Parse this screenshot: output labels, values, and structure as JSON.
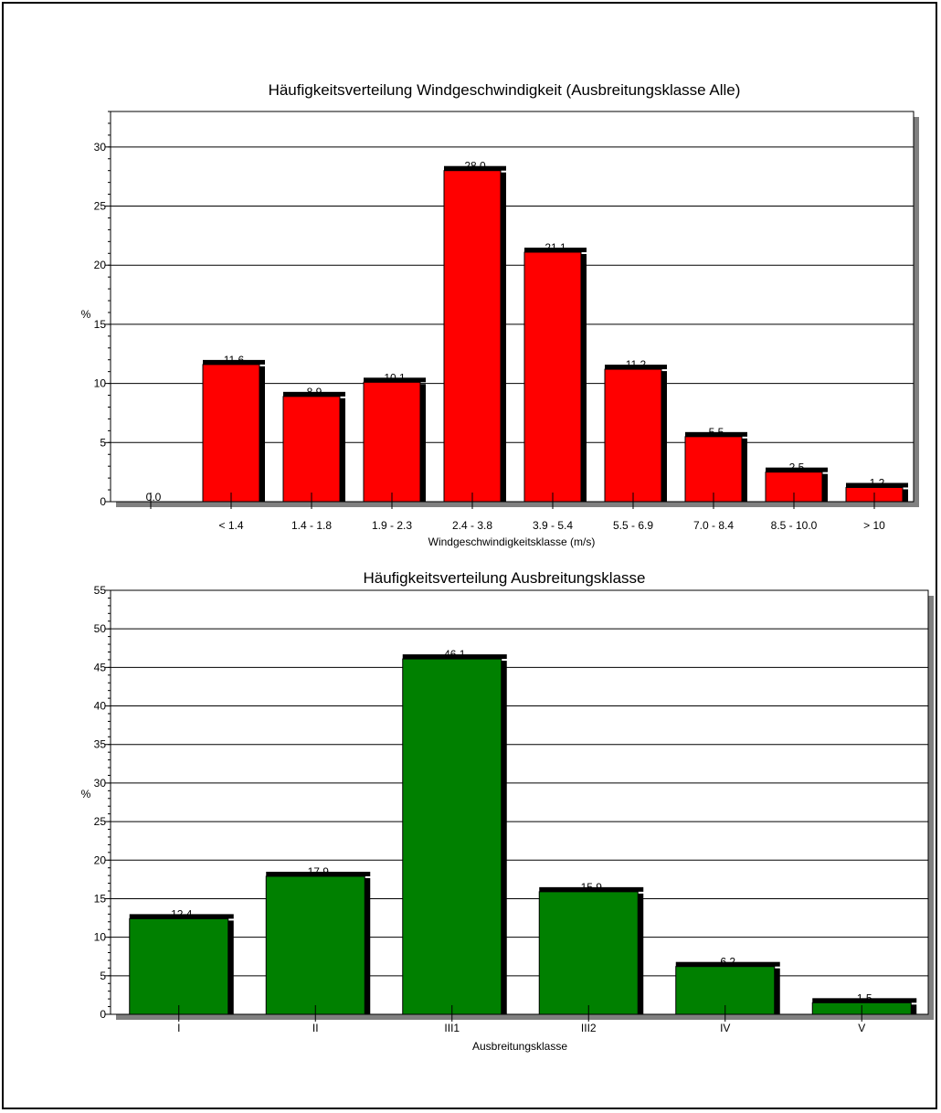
{
  "colors": {
    "wind_bar": "#ff0000",
    "class_bar": "#008000",
    "shadow": "#808080",
    "bar_top": "#000000",
    "grid": "#000000"
  },
  "chart_data": [
    {
      "type": "bar",
      "title": "Häufigkeitsverteilung Windgeschwindigkeit (Ausbreitungsklasse Alle)",
      "xlabel": "Windgeschwindigkeitsklasse (m/s)",
      "ylabel": "%",
      "ylim": [
        0,
        33
      ],
      "yticks": [
        0,
        5,
        10,
        15,
        20,
        25,
        30
      ],
      "grid": true,
      "categories": [
        "",
        "< 1.4",
        "1.4 - 1.8",
        "1.9 - 2.3",
        "2.4 - 3.8",
        "3.9 - 5.4",
        "5.5 - 6.9",
        "7.0 - 8.4",
        "8.5 - 10.0",
        "> 10"
      ],
      "values": [
        0.0,
        11.6,
        8.9,
        10.1,
        28.0,
        21.1,
        11.2,
        5.5,
        2.5,
        1.2
      ],
      "value_labels": [
        "0.0",
        "11.6",
        "8.9",
        "10.1",
        "28.0",
        "21.1",
        "11.2",
        "5.5",
        "2.5",
        "1.2"
      ],
      "bar_color": "#ff0000"
    },
    {
      "type": "bar",
      "title": "Häufigkeitsverteilung Ausbreitungsklasse",
      "xlabel": "Ausbreitungsklasse",
      "ylabel": "%",
      "ylim": [
        0,
        55
      ],
      "yticks": [
        0,
        5,
        10,
        15,
        20,
        25,
        30,
        35,
        40,
        45,
        50,
        55
      ],
      "grid": true,
      "categories": [
        "I",
        "II",
        "III1",
        "III2",
        "IV",
        "V"
      ],
      "values": [
        12.4,
        17.9,
        46.1,
        15.9,
        6.2,
        1.5
      ],
      "value_labels": [
        "12.4",
        "17.9",
        "46.1",
        "15.9",
        "6.2",
        "1.5"
      ],
      "bar_color": "#008000"
    }
  ]
}
